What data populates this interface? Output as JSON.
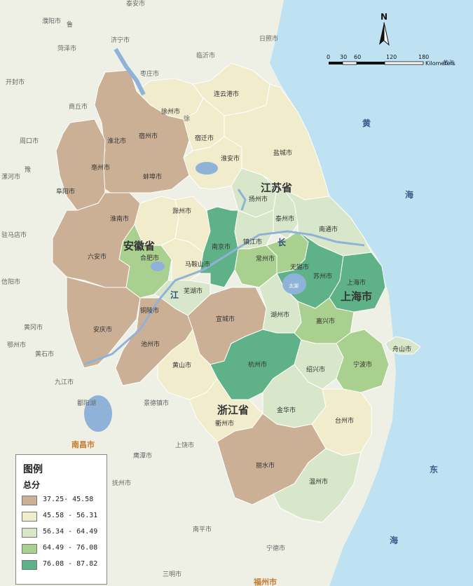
{
  "north": {
    "label": "N"
  },
  "scale": {
    "ticks": [
      "0",
      "30",
      "60",
      "120",
      "180"
    ],
    "unit": "Kilometers"
  },
  "provinces": {
    "jiangsu": "江苏省",
    "anhui": "安徽省",
    "zhejiang": "浙江省",
    "shanghai": "上海市"
  },
  "sea": {
    "huang1": "黄",
    "huang2": "海",
    "dong1": "东",
    "dong2": "海",
    "yellow_sea_small": "黄海"
  },
  "river": {
    "chang": "长",
    "jiang": "江"
  },
  "lakes": {
    "taihu": "太湖"
  },
  "cities": {
    "lianyungang": "连云港市",
    "xuzhou": "徐州市",
    "suqian": "宿迁市",
    "huaian": "淮安市",
    "yancheng": "盐城市",
    "yangzhou": "扬州市",
    "taizhou_js": "泰州市",
    "nantong": "南通市",
    "nanjing": "南京市",
    "zhenjiang": "镇江市",
    "changzhou": "常州市",
    "wuxi": "无锡市",
    "suzhou": "苏州市",
    "shanghai": "上海市",
    "suzhou_ah": "宿州市",
    "huaibei": "淮北市",
    "bozhou": "亳州市",
    "bengbu": "蚌埠市",
    "fuyang": "阜阳市",
    "huainan": "淮南市",
    "chuzhou": "滁州市",
    "luan": "六安市",
    "hefei": "合肥市",
    "maanshan": "马鞍山市",
    "wuhu": "芜湖市",
    "tongling": "铜陵市",
    "anqing": "安庆市",
    "chizhou": "池州市",
    "xuancheng": "宣城市",
    "huangshan": "黄山市",
    "huzhou": "湖州市",
    "jiaxing": "嘉兴市",
    "hangzhou": "杭州市",
    "shaoxing": "绍兴市",
    "ningbo": "宁波市",
    "zhoushan": "舟山市",
    "jinhua": "金华市",
    "quzhou": "衢州市",
    "taizhou_zj": "台州市",
    "lishui": "丽水市",
    "wenzhou": "温州市"
  },
  "context": {
    "taian": "泰安市",
    "jining": "济宁市",
    "linyi": "临沂市",
    "rizhao": "日照市",
    "zaozhuang": "枣庄市",
    "puyang": "濮阳市",
    "heze": "菏泽市",
    "kaifeng": "开封市",
    "shangqiu": "商丘市",
    "zhoukou": "周口市",
    "luohe": "漯河市",
    "zhumadian": "驻马店市",
    "xinyang": "信阳市",
    "huanggang": "黄冈市",
    "ezhou": "鄂州市",
    "huangshi": "黄石市",
    "jiujiang": "九江市",
    "poyang": "鄱阳湖",
    "jingdezhen": "景德镇市",
    "nanchang": "南昌市",
    "shangrao": "上饶市",
    "yingtan": "鹰潭市",
    "fuzhou_jx": "抚州市",
    "nanping": "南平市",
    "ningde": "宁德市",
    "sanming": "三明市",
    "fuzhou": "福州市",
    "lu": "鲁",
    "yu": "豫",
    "xu": "徐"
  },
  "legend": {
    "title": "图例",
    "subtitle": "总分",
    "classes": [
      {
        "label": "37.25- 45.58",
        "color": "#cbb096"
      },
      {
        "label": "45.58 - 56.31",
        "color": "#f1eccb"
      },
      {
        "label": "56.34 - 64.49",
        "color": "#d8e7ca"
      },
      {
        "label": "64.49 - 76.08",
        "color": "#a9d08e"
      },
      {
        "label": "76.08 - 87.82",
        "color": "#5fb287"
      }
    ]
  },
  "colors": {
    "land": "#eef0e6",
    "sea": "#bfe2f3",
    "lake": "#8fb3d8",
    "c1": "#cbb096",
    "c2": "#f1eccb",
    "c3": "#d8e7ca",
    "c4": "#a9d08e",
    "c5": "#5fb287",
    "text": "#333333"
  }
}
